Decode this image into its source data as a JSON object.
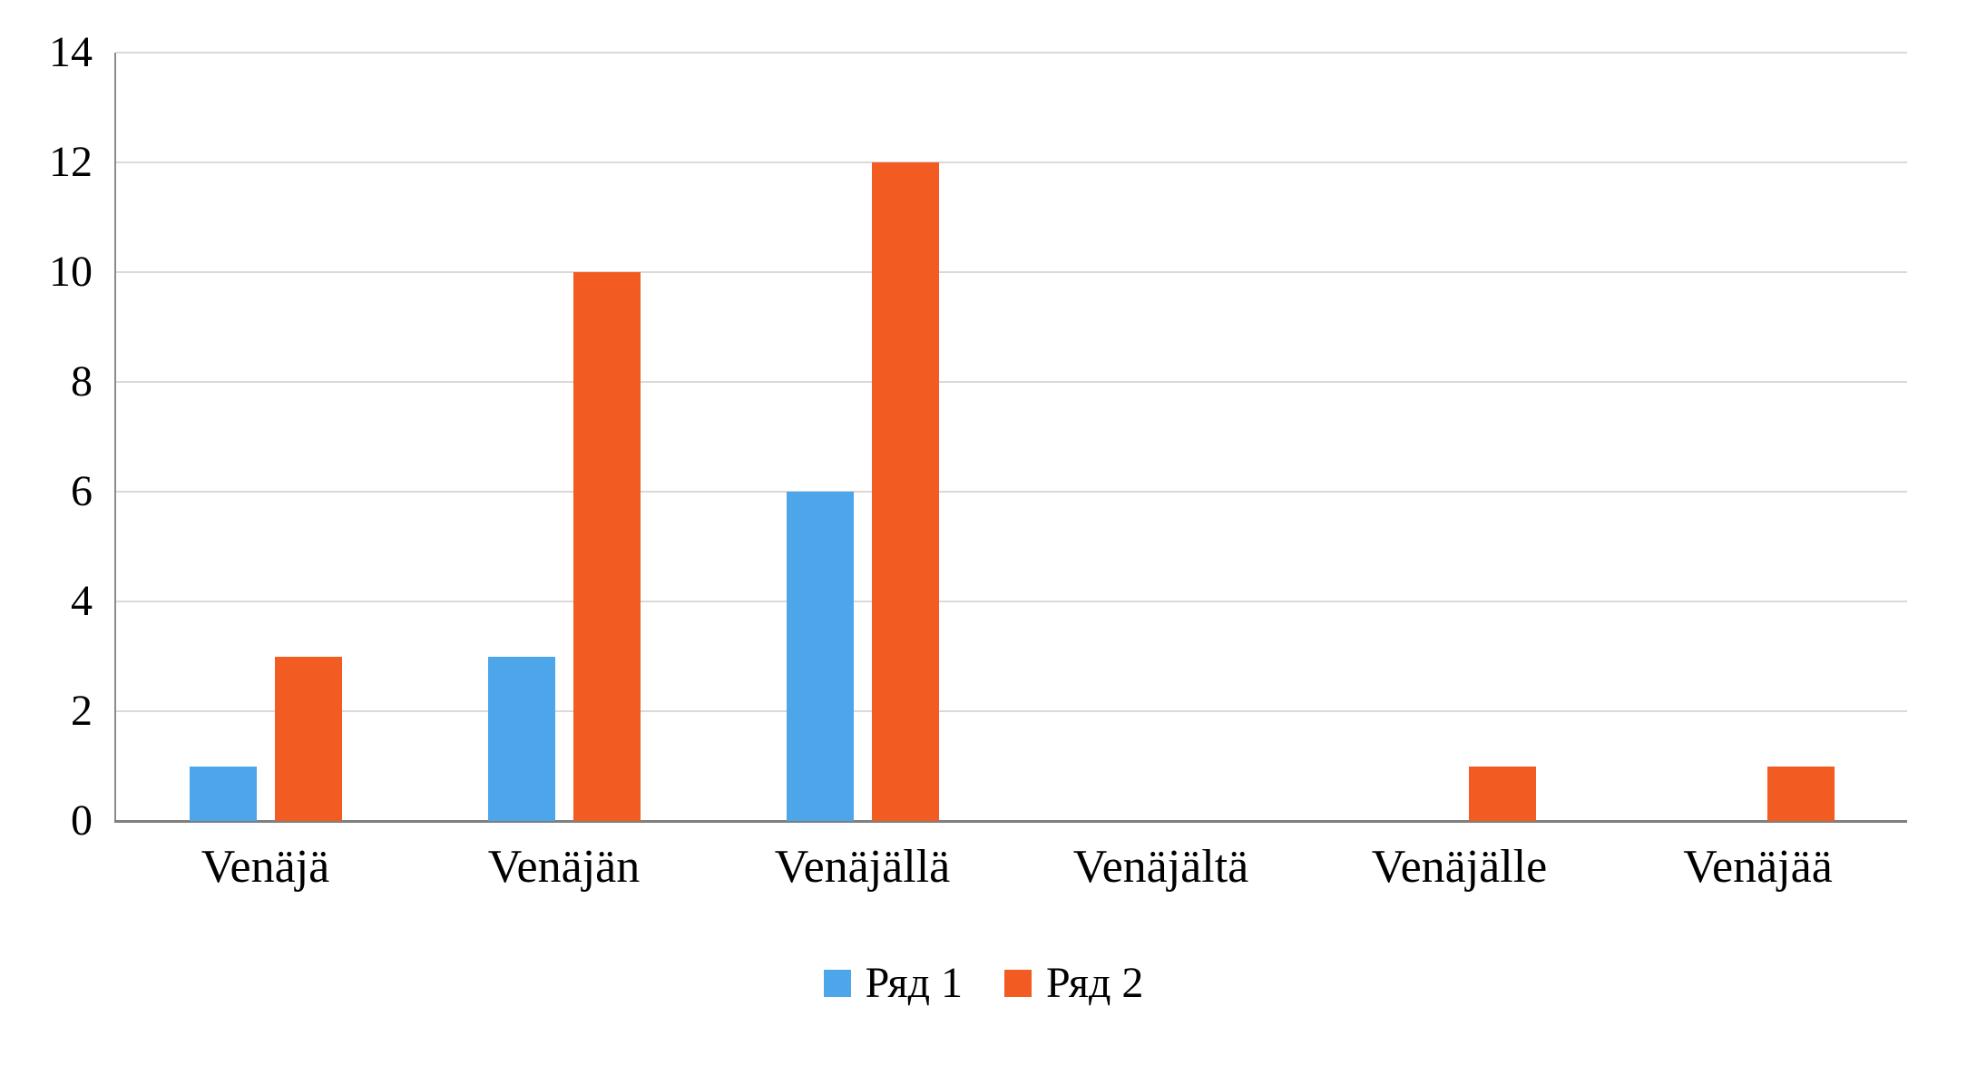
{
  "chart_data": {
    "type": "bar",
    "title": "",
    "xlabel": "",
    "ylabel": "",
    "categories": [
      "Venäjä",
      "Venäjän",
      "Venäjällä",
      "Venäjältä",
      "Venäjälle",
      "Venäjää"
    ],
    "series": [
      {
        "name": "Ряд 1",
        "color": "#4da6ea",
        "values": [
          1,
          3,
          6,
          0,
          0,
          0
        ]
      },
      {
        "name": "Ряд 2",
        "color": "#f25b21",
        "values": [
          3,
          10,
          12,
          0,
          1,
          1
        ]
      }
    ],
    "ylim": [
      0,
      14
    ],
    "ytick_step": 2,
    "yticks": [
      "0",
      "2",
      "4",
      "6",
      "8",
      "10",
      "12",
      "14"
    ],
    "grid": true,
    "gridline_color": "#d9d9d9",
    "axis_color": "#7f7f7f",
    "legend_position": "bottom"
  }
}
